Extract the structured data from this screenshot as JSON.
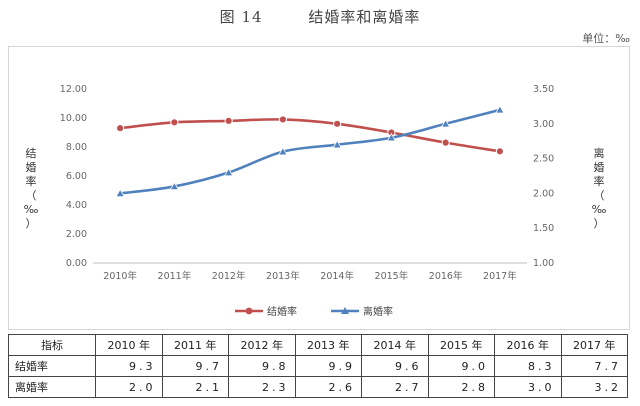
{
  "figure": {
    "number": "图 14",
    "title": "结婚率和离婚率",
    "unit": "单位：‰"
  },
  "chart_data": {
    "type": "line",
    "categories": [
      "2010年",
      "2011年",
      "2012年",
      "2013年",
      "2014年",
      "2015年",
      "2016年",
      "2017年"
    ],
    "series": [
      {
        "name": "结婚率",
        "axis": "left",
        "color": "#c0504d",
        "marker": "circle",
        "values": [
          9.3,
          9.7,
          9.8,
          9.9,
          9.6,
          9.0,
          8.3,
          7.7
        ]
      },
      {
        "name": "离婚率",
        "axis": "right",
        "color": "#4f81bd",
        "marker": "triangle",
        "values": [
          2.0,
          2.1,
          2.3,
          2.6,
          2.7,
          2.8,
          3.0,
          3.2
        ]
      }
    ],
    "ylabel_left": [
      "结",
      "婚",
      "率",
      "（",
      "‰",
      "）"
    ],
    "ylabel_right": [
      "离",
      "婚",
      "率",
      "（",
      "‰",
      "）"
    ],
    "ylim_left": [
      0,
      12
    ],
    "ylim_right": [
      1,
      3.5
    ],
    "yticks_left": [
      "0.00",
      "2.00",
      "4.00",
      "6.00",
      "8.00",
      "10.00",
      "12.00"
    ],
    "yticks_right": [
      "1.00",
      "1.50",
      "2.00",
      "2.50",
      "3.00",
      "3.50"
    ],
    "grid": false,
    "legend": "bottom"
  },
  "table": {
    "header_label": "指标",
    "years": [
      "2010 年",
      "2011 年",
      "2012 年",
      "2013 年",
      "2014 年",
      "2015 年",
      "2016 年",
      "2017 年"
    ],
    "rows": [
      {
        "label": "结婚率",
        "values": [
          "9.3",
          "9.7",
          "9.8",
          "9.9",
          "9.6",
          "9.0",
          "8.3",
          "7.7"
        ]
      },
      {
        "label": "离婚率",
        "values": [
          "2.0",
          "2.1",
          "2.3",
          "2.6",
          "2.7",
          "2.8",
          "3.0",
          "3.2"
        ]
      }
    ]
  }
}
